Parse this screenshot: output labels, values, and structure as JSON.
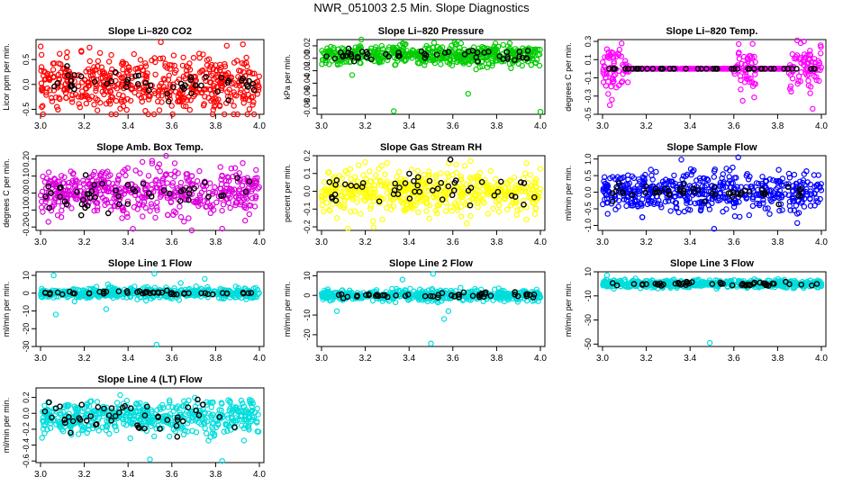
{
  "figure": {
    "title": "NWR_051003  2.5 Min. Slope Diagnostics"
  },
  "colors": {
    "overlay": "#000000"
  },
  "chart_data": [
    {
      "type": "scatter",
      "title": "Slope Li–820 CO2",
      "xlabel": "",
      "ylabel": "Licor ppm per min.",
      "xlim": [
        3.0,
        4.0
      ],
      "ylim": [
        -0.6,
        0.9
      ],
      "color": "#ff0000",
      "marker": "open-circle",
      "x_ticks": [
        "3.0",
        "3.2",
        "3.4",
        "3.6",
        "3.8",
        "4.0"
      ],
      "y_ticks": [
        -0.5,
        0.0,
        0.5
      ],
      "y_tick_labels": [
        "-0.5",
        "0.0",
        "0.5"
      ],
      "summary": {
        "n": 520,
        "center": 0.0,
        "spread": 0.28,
        "overlay_n": 50,
        "overlay_spread": 0.12
      },
      "outliers": [
        {
          "x": 3.55,
          "y": 0.85
        },
        {
          "x": 3.26,
          "y": -0.52
        }
      ]
    },
    {
      "type": "scatter",
      "title": "Slope Li–820 Pressure",
      "xlabel": "",
      "ylabel": "kPa per min.",
      "xlim": [
        3.0,
        4.0
      ],
      "ylim": [
        -0.09,
        0.03
      ],
      "color": "#00cc00",
      "marker": "open-circle",
      "x_ticks": [
        "3.0",
        "3.2",
        "3.4",
        "3.6",
        "3.8",
        "4.0"
      ],
      "y_ticks": [
        -0.08,
        -0.06,
        -0.04,
        -0.02,
        0.0,
        0.02
      ],
      "y_tick_labels": [
        "-0.08",
        "-0.06",
        "-0.04",
        "-0.02",
        "0.00",
        "0.02"
      ],
      "summary": {
        "n": 520,
        "center": 0.005,
        "spread": 0.008,
        "overlay_n": 50,
        "overlay_spread": 0.005
      },
      "outliers": [
        {
          "x": 3.33,
          "y": -0.085
        },
        {
          "x": 4.0,
          "y": -0.086
        },
        {
          "x": 3.67,
          "y": -0.057
        },
        {
          "x": 3.14,
          "y": -0.027
        }
      ]
    },
    {
      "type": "scatter",
      "title": "Slope Li–820 Temp.",
      "xlabel": "",
      "ylabel": "degrees C per min.",
      "xlim": [
        3.0,
        4.0
      ],
      "ylim": [
        -0.5,
        0.32
      ],
      "color": "#ff00ff",
      "marker": "open-circle",
      "x_ticks": [
        "3.0",
        "3.2",
        "3.4",
        "3.6",
        "3.8",
        "4.0"
      ],
      "y_ticks": [
        -0.5,
        -0.3,
        -0.1,
        0.1,
        0.3
      ],
      "y_tick_labels": [
        "-0.5",
        "-0.3",
        "-0.1",
        "0.1",
        "0.3"
      ],
      "summary": {
        "n": 520,
        "center": 0.0,
        "spread": 0.0,
        "active_ranges": [
          [
            3.0,
            3.12
          ],
          [
            3.6,
            3.7
          ],
          [
            3.85,
            4.0
          ]
        ],
        "active_spread": 0.12,
        "overlay_n": 50,
        "overlay_spread": 0.0
      },
      "outliers": [
        {
          "x": 3.92,
          "y": 0.3
        },
        {
          "x": 3.96,
          "y": -0.44
        }
      ]
    },
    {
      "type": "scatter",
      "title": "Slope Amb. Box Temp.",
      "xlabel": "",
      "ylabel": "degrees C per min.",
      "xlim": [
        3.0,
        4.0
      ],
      "ylim": [
        -0.22,
        0.22
      ],
      "color": "#dd00dd",
      "marker": "open-circle",
      "x_ticks": [
        "3.0",
        "3.2",
        "3.4",
        "3.6",
        "3.8",
        "4.0"
      ],
      "y_ticks": [
        -0.2,
        -0.1,
        0.0,
        0.1,
        0.2
      ],
      "y_tick_labels": [
        "-0.20",
        "-0.10",
        "0.00",
        "0.10",
        "0.20"
      ],
      "summary": {
        "n": 520,
        "center": 0.0,
        "spread": 0.07,
        "overlay_n": 50,
        "overlay_spread": 0.05
      },
      "outliers": [
        {
          "x": 3.83,
          "y": -0.21
        },
        {
          "x": 3.51,
          "y": 0.19
        }
      ]
    },
    {
      "type": "scatter",
      "title": "Slope Gas Stream RH",
      "xlabel": "",
      "ylabel": "percent per min.",
      "xlim": [
        3.0,
        4.0
      ],
      "ylim": [
        -0.22,
        0.2
      ],
      "color": "#ffff00",
      "marker": "open-circle",
      "x_ticks": [
        "3.0",
        "3.2",
        "3.4",
        "3.6",
        "3.8",
        "4.0"
      ],
      "y_ticks": [
        -0.2,
        -0.1,
        0.0,
        0.1,
        0.2
      ],
      "y_tick_labels": [
        "-0.2",
        "-0.1",
        "0.0",
        "0.1",
        "0.2"
      ],
      "summary": {
        "n": 520,
        "center": 0.0,
        "spread": 0.06,
        "overlay_n": 50,
        "overlay_spread": 0.05
      },
      "outliers": [
        {
          "x": 3.12,
          "y": -0.21
        },
        {
          "x": 3.07,
          "y": -0.15
        },
        {
          "x": 3.3,
          "y": 0.16
        }
      ]
    },
    {
      "type": "scatter",
      "title": "Slope Sample Flow",
      "xlabel": "",
      "ylabel": "ml/min per min.",
      "xlim": [
        3.0,
        4.0
      ],
      "ylim": [
        -1.15,
        1.1
      ],
      "color": "#0000ff",
      "marker": "open-circle",
      "x_ticks": [
        "3.0",
        "3.2",
        "3.4",
        "3.6",
        "3.8",
        "4.0"
      ],
      "y_ticks": [
        -1.0,
        -0.5,
        0.0,
        0.5,
        1.0
      ],
      "y_tick_labels": [
        "-1.0",
        "-0.5",
        "0.0",
        "0.5",
        "1.0"
      ],
      "summary": {
        "n": 520,
        "center": 0.0,
        "spread": 0.3,
        "overlay_n": 50,
        "overlay_spread": 0.12
      },
      "outliers": [
        {
          "x": 3.62,
          "y": 1.05
        },
        {
          "x": 3.36,
          "y": 0.98
        },
        {
          "x": 3.51,
          "y": -1.1
        }
      ]
    },
    {
      "type": "scatter",
      "title": "Slope Line 1 Flow",
      "xlabel": "",
      "ylabel": "ml/min per min.",
      "xlim": [
        3.0,
        4.0
      ],
      "ylim": [
        -30,
        12
      ],
      "color": "#00dddd",
      "marker": "open-circle",
      "x_ticks": [
        "3.0",
        "3.2",
        "3.4",
        "3.6",
        "3.8",
        "4.0"
      ],
      "y_ticks": [
        -30,
        -20,
        -10,
        0,
        10
      ],
      "y_tick_labels": [
        "-30",
        "-20",
        "-10",
        "0",
        "10"
      ],
      "summary": {
        "n": 520,
        "center": 0.0,
        "spread": 1.5,
        "overlay_n": 50,
        "overlay_spread": 0.6
      },
      "outliers": [
        {
          "x": 3.53,
          "y": -29
        },
        {
          "x": 3.07,
          "y": -12
        },
        {
          "x": 3.52,
          "y": 11
        },
        {
          "x": 3.06,
          "y": 10
        },
        {
          "x": 3.75,
          "y": 8
        },
        {
          "x": 3.3,
          "y": -9
        }
      ]
    },
    {
      "type": "scatter",
      "title": "Slope Line 2 Flow",
      "xlabel": "",
      "ylabel": "ml/min per min.",
      "xlim": [
        3.0,
        4.0
      ],
      "ylim": [
        -26,
        12
      ],
      "color": "#00dddd",
      "marker": "open-circle",
      "x_ticks": [
        "3.0",
        "3.2",
        "3.4",
        "3.6",
        "3.8",
        "4.0"
      ],
      "y_ticks": [
        -20,
        -10,
        0,
        10
      ],
      "y_tick_labels": [
        "-20",
        "-10",
        "0",
        "10"
      ],
      "summary": {
        "n": 520,
        "center": 0.0,
        "spread": 1.3,
        "overlay_n": 50,
        "overlay_spread": 0.6
      },
      "outliers": [
        {
          "x": 3.5,
          "y": -24.5
        },
        {
          "x": 3.51,
          "y": 11
        },
        {
          "x": 3.56,
          "y": -12
        },
        {
          "x": 3.58,
          "y": -8
        },
        {
          "x": 3.07,
          "y": -8
        },
        {
          "x": 3.37,
          "y": 8
        }
      ]
    },
    {
      "type": "scatter",
      "title": "Slope Line 3 Flow",
      "xlabel": "",
      "ylabel": "ml/min per min.",
      "xlim": [
        3.0,
        4.0
      ],
      "ylim": [
        -52,
        10
      ],
      "color": "#00dddd",
      "marker": "open-circle",
      "x_ticks": [
        "3.0",
        "3.2",
        "3.4",
        "3.6",
        "3.8",
        "4.0"
      ],
      "y_ticks": [
        -50,
        -30,
        -10,
        10
      ],
      "y_tick_labels": [
        "-50",
        "-30",
        "-10",
        "10"
      ],
      "summary": {
        "n": 520,
        "center": 0.0,
        "spread": 1.6,
        "overlay_n": 50,
        "overlay_spread": 0.8
      },
      "outliers": [
        {
          "x": 3.49,
          "y": -49
        },
        {
          "x": 3.02,
          "y": 7
        }
      ]
    },
    {
      "type": "scatter",
      "title": "Slope Line 4 (LT) Flow",
      "xlabel": "",
      "ylabel": "ml/min per min.",
      "xlim": [
        3.0,
        4.0
      ],
      "ylim": [
        -0.62,
        0.32
      ],
      "color": "#00dddd",
      "marker": "open-circle",
      "x_ticks": [
        "3.0",
        "3.2",
        "3.4",
        "3.6",
        "3.8",
        "4.0"
      ],
      "y_ticks": [
        -0.6,
        -0.4,
        -0.2,
        0.0,
        0.2
      ],
      "y_tick_labels": [
        "-0.6",
        "-0.4",
        "-0.2",
        "0.0",
        "0.2"
      ],
      "summary": {
        "n": 520,
        "center": -0.05,
        "spread": 0.1,
        "overlay_n": 50,
        "overlay_spread": 0.1
      },
      "outliers": [
        {
          "x": 3.5,
          "y": -0.58
        },
        {
          "x": 3.83,
          "y": -0.6
        }
      ]
    }
  ]
}
